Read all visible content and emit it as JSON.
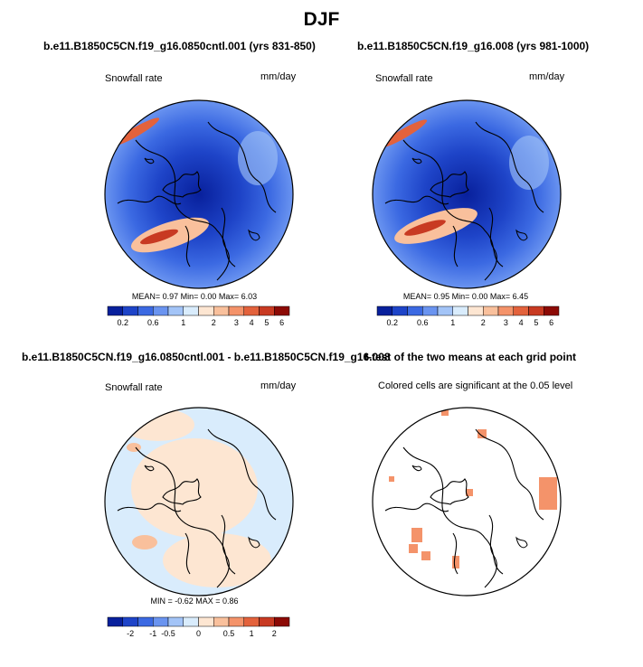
{
  "figure": {
    "season": "DJF",
    "variable_label": "Snowfall rate",
    "units_label": "mm/day"
  },
  "panels": {
    "top_left": {
      "title": "b.e11.B1850C5CN.f19_g16.0850cntl.001 (yrs 831-850)",
      "stats_text": "MEAN=   0.97  Min=   0.00  Max=   6.03"
    },
    "top_right": {
      "title": "b.e11.B1850C5CN.f19_g16.008 (yrs 981-1000)",
      "stats_text": "MEAN=   0.95  Min=   0.00  Max=   6.45"
    },
    "bottom_left": {
      "title": "b.e11.B1850C5CN.f19_g16.0850cntl.001 - b.e11.B1850C5CN.f19_g16.008",
      "stats_text": "MIN =  -0.62  MAX =   0.86"
    },
    "bottom_right": {
      "title": "t-test of the two means at each grid point",
      "subtitle": "Colored cells are significant at the 0.05 level"
    }
  },
  "chart_data": [
    {
      "type": "heatmap",
      "projection": "polar stereographic (north pole)",
      "colorbar": {
        "ticks": [
          "0.2",
          "0.6",
          "1",
          "2",
          "3",
          "4",
          "5",
          "6"
        ],
        "colors": [
          "#08209c",
          "#1e44c8",
          "#3b69e2",
          "#6a94f0",
          "#a3c4f7",
          "#d9ecfc",
          "#fde6d2",
          "#f9c09c",
          "#f4936a",
          "#e3623c",
          "#c83a22",
          "#8c0a05"
        ]
      },
      "colorbar_levels": [
        0.2,
        0.4,
        0.6,
        0.8,
        1,
        1.5,
        2,
        2.5,
        3,
        4,
        5,
        6
      ]
    },
    {
      "type": "heatmap",
      "projection": "polar stereographic (north pole)",
      "difference_colorbar": {
        "ticks": [
          "-2",
          "-1",
          "-0.5",
          "0",
          "0.5",
          "1",
          "2"
        ],
        "colors": [
          "#08209c",
          "#1e44c8",
          "#3b69e2",
          "#6a94f0",
          "#a3c4f7",
          "#d9ecfc",
          "#fde6d2",
          "#f9c09c",
          "#f4936a",
          "#e3623c",
          "#c83a22",
          "#8c0a05"
        ]
      }
    }
  ]
}
